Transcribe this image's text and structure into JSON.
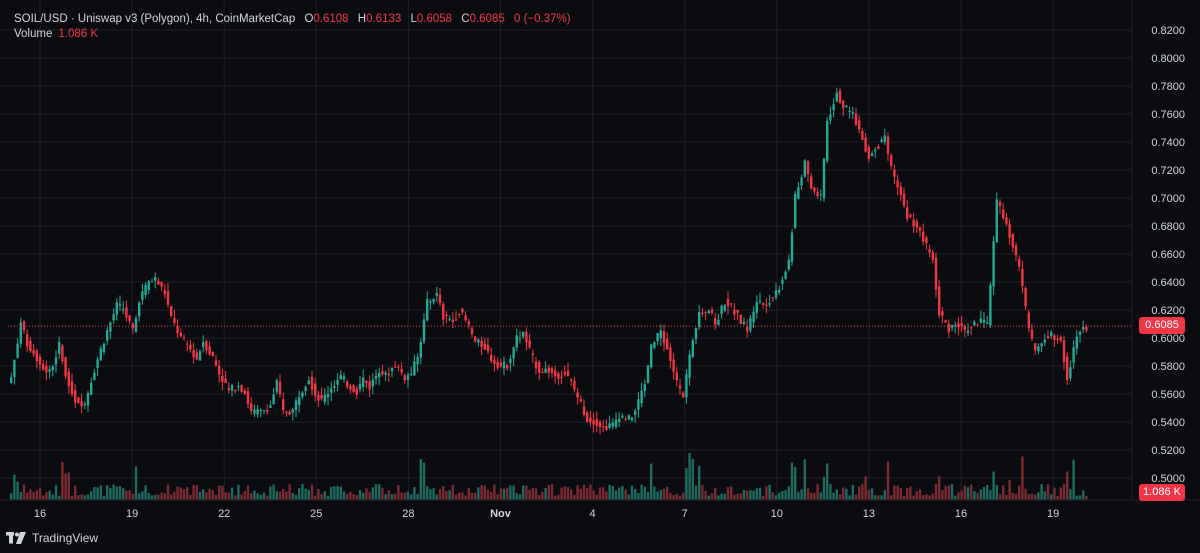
{
  "header": {
    "symbol": "SOIL/USD · Uniswap v3 (Polygon), 4h, CoinMarketCap",
    "open_label": "O",
    "open": "0.6108",
    "high_label": "H",
    "high": "0.6133",
    "low_label": "L",
    "low": "0.6058",
    "close_label": "C",
    "close": "0.6085",
    "change": "0 (−0.37%)",
    "volume_label": "Volume",
    "volume": "1.086 K"
  },
  "price_tag": "0.6085",
  "volume_tag": "1.086 K",
  "brand": "TradingView",
  "colors": {
    "up": "#22ab94",
    "down": "#f23645",
    "background": "#0b0c10",
    "grid": "#1c1f27",
    "text": "#d1d4dc"
  },
  "chart_data": {
    "type": "candlestick",
    "interval": "4h",
    "ylim": [
      0.48,
      0.825
    ],
    "y_ticks": [
      "0.5000",
      "0.5200",
      "0.5400",
      "0.5600",
      "0.5800",
      "0.6000",
      "0.6200",
      "0.6400",
      "0.6600",
      "0.6800",
      "0.7000",
      "0.7200",
      "0.7400",
      "0.7600",
      "0.7800",
      "0.8000",
      "0.8200"
    ],
    "x_ticks": [
      "16",
      "19",
      "22",
      "25",
      "28",
      "Nov",
      "4",
      "7",
      "10",
      "13",
      "16",
      "19"
    ],
    "last_price": 0.6085,
    "series": [
      {
        "name": "price",
        "anchors": [
          [
            0,
            0.572
          ],
          [
            3,
            0.61
          ],
          [
            5,
            0.596
          ],
          [
            8,
            0.586
          ],
          [
            11,
            0.576
          ],
          [
            13,
            0.58
          ],
          [
            15,
            0.595
          ],
          [
            17,
            0.574
          ],
          [
            20,
            0.556
          ],
          [
            23,
            0.553
          ],
          [
            25,
            0.57
          ],
          [
            27,
            0.585
          ],
          [
            30,
            0.605
          ],
          [
            33,
            0.623
          ],
          [
            35,
            0.621
          ],
          [
            38,
            0.604
          ],
          [
            40,
            0.628
          ],
          [
            43,
            0.64
          ],
          [
            45,
            0.642
          ],
          [
            48,
            0.632
          ],
          [
            50,
            0.614
          ],
          [
            53,
            0.6
          ],
          [
            55,
            0.595
          ],
          [
            58,
            0.585
          ],
          [
            60,
            0.598
          ],
          [
            63,
            0.586
          ],
          [
            65,
            0.575
          ],
          [
            68,
            0.562
          ],
          [
            71,
            0.567
          ],
          [
            73,
            0.561
          ],
          [
            75,
            0.547
          ],
          [
            78,
            0.547
          ],
          [
            81,
            0.552
          ],
          [
            83,
            0.568
          ],
          [
            85,
            0.547
          ],
          [
            88,
            0.548
          ],
          [
            90,
            0.56
          ],
          [
            93,
            0.572
          ],
          [
            95,
            0.56
          ],
          [
            97,
            0.555
          ],
          [
            100,
            0.565
          ],
          [
            103,
            0.572
          ],
          [
            105,
            0.567
          ],
          [
            108,
            0.562
          ],
          [
            110,
            0.571
          ],
          [
            112,
            0.565
          ],
          [
            115,
            0.578
          ],
          [
            117,
            0.573
          ],
          [
            120,
            0.581
          ],
          [
            123,
            0.572
          ],
          [
            125,
            0.575
          ],
          [
            127,
            0.586
          ],
          [
            130,
            0.625
          ],
          [
            133,
            0.631
          ],
          [
            135,
            0.615
          ],
          [
            138,
            0.612
          ],
          [
            140,
            0.62
          ],
          [
            143,
            0.608
          ],
          [
            145,
            0.597
          ],
          [
            148,
            0.594
          ],
          [
            150,
            0.585
          ],
          [
            153,
            0.58
          ],
          [
            155,
            0.581
          ],
          [
            158,
            0.6
          ],
          [
            160,
            0.603
          ],
          [
            163,
            0.585
          ],
          [
            165,
            0.577
          ],
          [
            168,
            0.577
          ],
          [
            170,
            0.573
          ],
          [
            173,
            0.575
          ],
          [
            175,
            0.568
          ],
          [
            178,
            0.553
          ],
          [
            180,
            0.542
          ],
          [
            183,
            0.54
          ],
          [
            185,
            0.536
          ],
          [
            188,
            0.538
          ],
          [
            190,
            0.545
          ],
          [
            193,
            0.542
          ],
          [
            195,
            0.548
          ],
          [
            198,
            0.568
          ],
          [
            200,
            0.593
          ],
          [
            203,
            0.605
          ],
          [
            205,
            0.592
          ],
          [
            208,
            0.568
          ],
          [
            210,
            0.557
          ],
          [
            213,
            0.6
          ],
          [
            215,
            0.619
          ],
          [
            218,
            0.62
          ],
          [
            220,
            0.61
          ],
          [
            223,
            0.626
          ],
          [
            225,
            0.622
          ],
          [
            228,
            0.612
          ],
          [
            230,
            0.606
          ],
          [
            233,
            0.627
          ],
          [
            235,
            0.624
          ],
          [
            238,
            0.629
          ],
          [
            240,
            0.637
          ],
          [
            243,
            0.655
          ],
          [
            245,
            0.7
          ],
          [
            248,
            0.725
          ],
          [
            250,
            0.707
          ],
          [
            253,
            0.7
          ],
          [
            255,
            0.755
          ],
          [
            258,
            0.776
          ],
          [
            260,
            0.765
          ],
          [
            263,
            0.76
          ],
          [
            265,
            0.748
          ],
          [
            268,
            0.73
          ],
          [
            270,
            0.736
          ],
          [
            273,
            0.742
          ],
          [
            275,
            0.72
          ],
          [
            278,
            0.702
          ],
          [
            280,
            0.687
          ],
          [
            283,
            0.68
          ],
          [
            285,
            0.67
          ],
          [
            288,
            0.656
          ],
          [
            290,
            0.618
          ],
          [
            293,
            0.607
          ],
          [
            295,
            0.611
          ],
          [
            298,
            0.605
          ],
          [
            300,
            0.608
          ],
          [
            303,
            0.613
          ],
          [
            305,
            0.608
          ],
          [
            308,
            0.698
          ],
          [
            310,
            0.688
          ],
          [
            313,
            0.665
          ],
          [
            315,
            0.65
          ],
          [
            318,
            0.605
          ],
          [
            320,
            0.59
          ],
          [
            323,
            0.6
          ],
          [
            325,
            0.602
          ],
          [
            328,
            0.6
          ],
          [
            330,
            0.571
          ],
          [
            333,
            0.602
          ],
          [
            335,
            0.608
          ],
          [
            336,
            0.6085
          ]
        ]
      },
      {
        "name": "volume",
        "max_label": "1.086K"
      }
    ]
  }
}
